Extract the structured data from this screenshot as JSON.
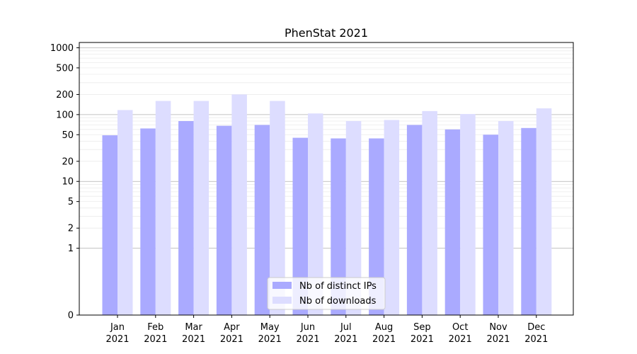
{
  "chart_data": {
    "type": "bar",
    "title": "PhenStat 2021",
    "xlabel": "",
    "ylabel": "",
    "y_scale": "symlog",
    "ylim": [
      0,
      1200
    ],
    "y_ticks": [
      0,
      1,
      2,
      5,
      10,
      20,
      50,
      100,
      200,
      500,
      1000
    ],
    "grid": true,
    "legend_position": "bottom-center",
    "categories": [
      {
        "month": "Jan",
        "year": "2021"
      },
      {
        "month": "Feb",
        "year": "2021"
      },
      {
        "month": "Mar",
        "year": "2021"
      },
      {
        "month": "Apr",
        "year": "2021"
      },
      {
        "month": "May",
        "year": "2021"
      },
      {
        "month": "Jun",
        "year": "2021"
      },
      {
        "month": "Jul",
        "year": "2021"
      },
      {
        "month": "Aug",
        "year": "2021"
      },
      {
        "month": "Sep",
        "year": "2021"
      },
      {
        "month": "Oct",
        "year": "2021"
      },
      {
        "month": "Nov",
        "year": "2021"
      },
      {
        "month": "Dec",
        "year": "2021"
      }
    ],
    "series": [
      {
        "name": "Nb of distinct IPs",
        "color": "#aaaaff",
        "values": [
          49,
          62,
          80,
          68,
          70,
          45,
          44,
          44,
          70,
          60,
          50,
          63
        ]
      },
      {
        "name": "Nb of downloads",
        "color": "#ddddff",
        "values": [
          117,
          160,
          160,
          200,
          160,
          104,
          80,
          83,
          113,
          102,
          80,
          124
        ]
      }
    ]
  }
}
